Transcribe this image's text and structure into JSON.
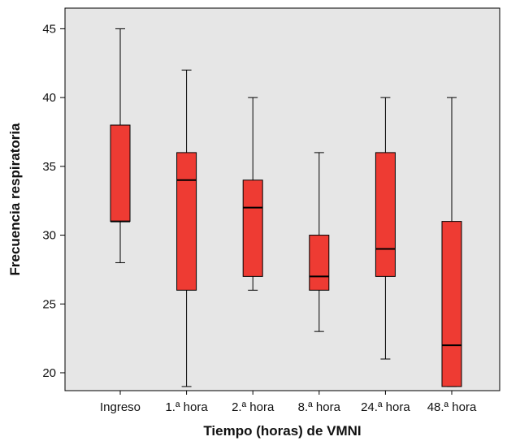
{
  "chart_data": {
    "type": "boxplot",
    "title": "",
    "xlabel": "Tiempo (horas) de VMNI",
    "ylabel": "Frecuencia respiratoria",
    "categories": [
      "Ingreso",
      "1.ª hora",
      "2.ª hora",
      "8.ª hora",
      "24.ª hora",
      "48.ª hora"
    ],
    "boxes": [
      {
        "category": "Ingreso",
        "min": 28,
        "q1": 31,
        "median": 31,
        "q3": 38,
        "max": 45
      },
      {
        "category": "1.ª hora",
        "min": 19,
        "q1": 26,
        "median": 34,
        "q3": 36,
        "max": 42
      },
      {
        "category": "2.ª hora",
        "min": 26,
        "q1": 27,
        "median": 32,
        "q3": 34,
        "max": 40
      },
      {
        "category": "8.ª hora",
        "min": 23,
        "q1": 26,
        "median": 27,
        "q3": 30,
        "max": 36
      },
      {
        "category": "24.ª hora",
        "min": 21,
        "q1": 27,
        "median": 29,
        "q3": 36,
        "max": 40
      },
      {
        "category": "48.ª hora",
        "min": 19,
        "q1": 19,
        "median": 22,
        "q3": 31,
        "max": 40
      }
    ],
    "yticks": [
      20,
      25,
      30,
      35,
      40,
      45
    ],
    "ylim": [
      18.7,
      46.5
    ],
    "grid": false,
    "colors": {
      "box_fill": "#ee3b33",
      "plot_background": "#e6e6e6",
      "line": "#000000"
    }
  }
}
